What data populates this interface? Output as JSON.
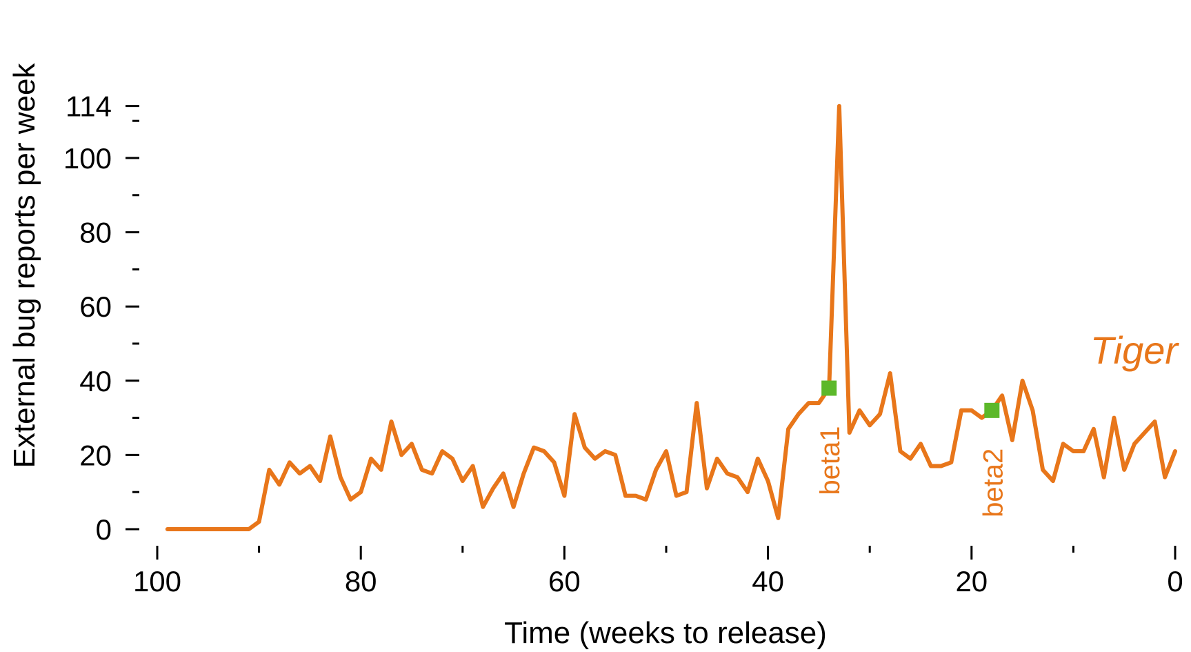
{
  "chart_data": {
    "type": "line",
    "xlabel": "Time (weeks to release)",
    "ylabel": "External bug reports per week",
    "xlim": [
      100,
      0
    ],
    "ylim": [
      0,
      114
    ],
    "x_ticks": [
      100,
      90,
      80,
      70,
      60,
      50,
      40,
      30,
      20,
      10,
      0
    ],
    "x_tick_labels": [
      "100",
      "",
      "80",
      "",
      "60",
      "",
      "40",
      "",
      "20",
      "",
      "0"
    ],
    "y_ticks": [
      0,
      10,
      20,
      30,
      40,
      50,
      60,
      70,
      80,
      90,
      100,
      110,
      114
    ],
    "y_tick_labels": [
      "0",
      "",
      "20",
      "",
      "40",
      "",
      "60",
      "",
      "80",
      "",
      "100",
      "",
      "114"
    ],
    "grid": false,
    "colors": {
      "series": "#e8761a",
      "marker": "#5cb82a"
    },
    "series": [
      {
        "name": "Tiger",
        "x": [
          99,
          98,
          97,
          96,
          95,
          94,
          93,
          92,
          91,
          90,
          89,
          88,
          87,
          86,
          85,
          84,
          83,
          82,
          81,
          80,
          79,
          78,
          77,
          76,
          75,
          74,
          73,
          72,
          71,
          70,
          69,
          68,
          67,
          66,
          65,
          64,
          63,
          62,
          61,
          60,
          59,
          58,
          57,
          56,
          55,
          54,
          53,
          52,
          51,
          50,
          49,
          48,
          47,
          46,
          45,
          44,
          43,
          42,
          41,
          40,
          39,
          38,
          37,
          36,
          35,
          34,
          33,
          32,
          31,
          30,
          29,
          28,
          27,
          26,
          25,
          24,
          23,
          22,
          21,
          20,
          19,
          18,
          17,
          16,
          15,
          14,
          13,
          12,
          11,
          10,
          9,
          8,
          7,
          6,
          5,
          4,
          3,
          2,
          1,
          0
        ],
        "values": [
          0,
          0,
          0,
          0,
          0,
          0,
          0,
          0,
          0,
          2,
          16,
          12,
          18,
          15,
          17,
          13,
          25,
          14,
          8,
          10,
          19,
          16,
          29,
          20,
          23,
          16,
          15,
          21,
          19,
          13,
          17,
          6,
          11,
          15,
          6,
          15,
          22,
          21,
          18,
          9,
          31,
          22,
          19,
          21,
          20,
          9,
          9,
          8,
          16,
          21,
          9,
          10,
          34,
          11,
          19,
          15,
          14,
          10,
          19,
          13,
          3,
          27,
          31,
          34,
          34,
          38,
          114,
          26,
          32,
          28,
          31,
          42,
          21,
          19,
          23,
          17,
          17,
          18,
          32,
          32,
          30,
          32,
          36,
          24,
          40,
          32,
          16,
          13,
          23,
          21,
          21,
          27,
          14,
          30,
          16,
          23,
          26,
          29,
          14,
          21
        ]
      }
    ],
    "annotations": [
      {
        "label": "beta1",
        "x": 34,
        "y": 38
      },
      {
        "label": "beta2",
        "x": 18,
        "y": 32
      }
    ]
  }
}
